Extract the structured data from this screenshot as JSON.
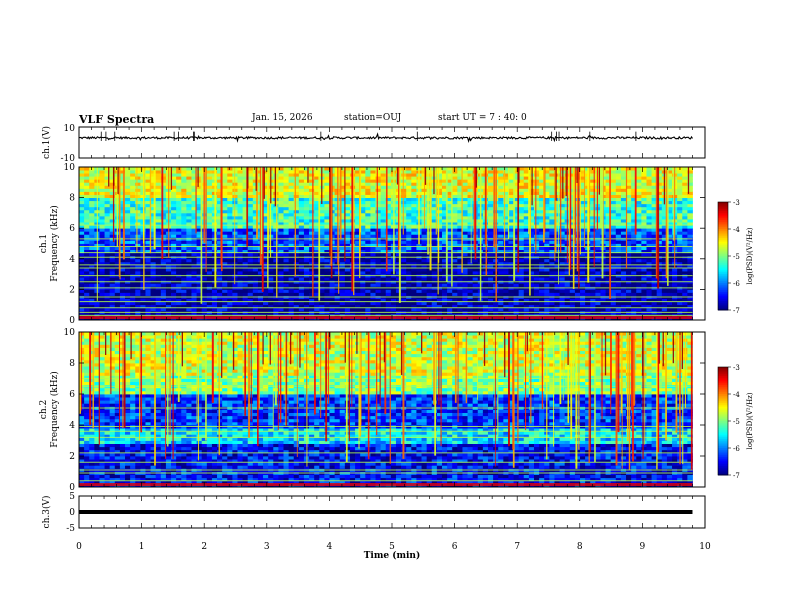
{
  "header": {
    "title": "VLF Spectra",
    "date": "Jan. 15, 2026",
    "station": "station=OUJ",
    "start_time": "start UT =  7 : 40: 0"
  },
  "chart_data": [
    {
      "type": "line",
      "panel": "waveform ch.1",
      "ylabel": "ch.1(V)",
      "ylim": [
        -10,
        10
      ],
      "y_tick_labels": [
        "10",
        "-10"
      ],
      "series_description": "near-constant offset trace around +3 V with small noise",
      "approx_level": 3,
      "x_range": [
        0,
        9.8
      ],
      "grid": false
    },
    {
      "type": "heatmap",
      "panel": "spectrogram ch.1",
      "ylabel_top": "ch.1",
      "ylabel": "Frequency (kHz)",
      "ylim": [
        0,
        10
      ],
      "y_ticks": [
        0,
        2,
        4,
        6,
        8,
        10
      ],
      "xlim": [
        0,
        9.8
      ],
      "colorbar": {
        "label": "log(PSD)(V²/Hz)",
        "range": [
          -7,
          -3
        ],
        "ticks": [
          "-3",
          "-4",
          "-5",
          "-6",
          "-7"
        ]
      },
      "bands": [
        {
          "from": 0,
          "to": 4.5,
          "level": -6.8
        },
        {
          "from": 4.5,
          "to": 6,
          "level": -6.2
        },
        {
          "from": 6,
          "to": 8,
          "level": -5.3
        },
        {
          "from": 8,
          "to": 10,
          "level": -4.6
        }
      ],
      "narrowband_lines_khz": [
        0.3,
        0.5,
        0.8,
        1.2,
        1.5,
        2.1,
        2.5,
        2.9,
        3.4,
        3.6,
        4.1,
        4.4,
        4.8,
        5.3,
        6.2
      ]
    },
    {
      "type": "heatmap",
      "panel": "spectrogram ch.2",
      "ylabel_top": "ch.2",
      "ylabel": "Frequency (kHz)",
      "ylim": [
        0,
        10
      ],
      "y_ticks": [
        0,
        2,
        4,
        6,
        8,
        10
      ],
      "xlim": [
        0,
        9.8
      ],
      "colorbar": {
        "label": "log(PSD)(V²/Hz)",
        "range": [
          -7,
          -3
        ],
        "ticks": [
          "-3",
          "-4",
          "-5",
          "-6",
          "-7"
        ]
      },
      "bands": [
        {
          "from": 0,
          "to": 2.8,
          "level": -6.5
        },
        {
          "from": 2.8,
          "to": 3.8,
          "level": -5.6
        },
        {
          "from": 3.8,
          "to": 6,
          "level": -6.3
        },
        {
          "from": 6,
          "to": 7.2,
          "level": -5.0
        },
        {
          "from": 7.2,
          "to": 10,
          "level": -4.7
        }
      ],
      "narrowband_lines_khz": [
        0.4,
        0.9,
        1.1,
        1.6,
        2.2,
        3.2,
        3.6,
        3.9,
        5.1,
        6.5,
        7.0
      ]
    },
    {
      "type": "line",
      "panel": "waveform ch.3",
      "ylabel": "ch.3(V)",
      "ylim": [
        -5,
        5
      ],
      "y_tick_labels": [
        "5",
        "0",
        "-5"
      ],
      "series_description": "flat thick trace",
      "approx_level": 0,
      "x_range": [
        0,
        9.8
      ],
      "grid": false
    }
  ],
  "x_axis": {
    "label": "Time (min)",
    "range": [
      0,
      10
    ],
    "tick_labels": [
      "0",
      "1",
      "2",
      "3",
      "4",
      "5",
      "6",
      "7",
      "8",
      "9",
      "10"
    ]
  }
}
